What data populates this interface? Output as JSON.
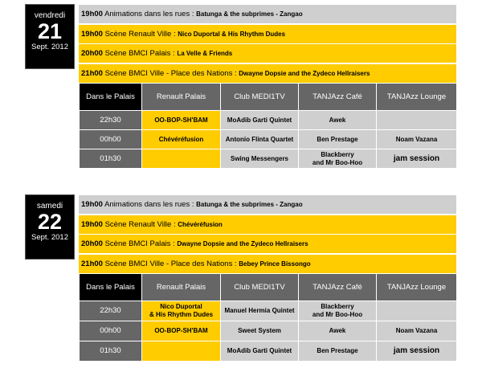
{
  "days": [
    {
      "weekday": "vendredi",
      "day": "21",
      "month": "Sept. 2012",
      "events": [
        {
          "time": "19h00",
          "venue": "Animations dans les rues :",
          "act": "Batunga & the subprimes - Zangao",
          "color": "gray"
        },
        {
          "time": "19h00",
          "venue": "Scène Renault Ville :",
          "act": "Nico Duportal & His Rhythm Dudes",
          "color": "yellow"
        },
        {
          "time": "20h00",
          "venue": "Scène BMCI Palais :",
          "act": "La Velle & Friends",
          "color": "yellow"
        },
        {
          "time": "21h00",
          "venue": "Scène BMCI Ville - Place des Nations :",
          "act": "Dwayne Dopsie and the Zydeco Hellraisers",
          "color": "yellow"
        }
      ],
      "table": {
        "headers": [
          "Dans le Palais",
          "Renault Palais",
          "Club MEDI1TV",
          "TANJAzz Café",
          "TANJAzz Lounge"
        ],
        "rows": [
          [
            "22h30",
            "OO-BOP-SH'BAM",
            "MoAdib Garti Quintet",
            "Awek",
            ""
          ],
          [
            "00h00",
            "Chévéréfusion",
            "Antonio Flinta Quartet",
            "Ben Prestage",
            "Noam Vazana"
          ],
          [
            "01h30",
            "",
            "Swing Messengers",
            "Blackberry\nand Mr Boo-Hoo",
            "jam session"
          ]
        ]
      }
    },
    {
      "weekday": "samedi",
      "day": "22",
      "month": "Sept. 2012",
      "events": [
        {
          "time": "19h00",
          "venue": "Animations dans les rues :",
          "act": "Batunga & the subprimes - Zangao",
          "color": "gray"
        },
        {
          "time": "19h00",
          "venue": "Scène Renault Ville :",
          "act": "Chévéréfusion",
          "color": "yellow"
        },
        {
          "time": "20h00",
          "venue": "Scène BMCI Palais :",
          "act": "Dwayne Dopsie and the Zydeco Hellraisers",
          "color": "yellow"
        },
        {
          "time": "21h00",
          "venue": "Scène BMCI Ville - Place des Nations :",
          "act": "Bebey Prince Bissongo",
          "color": "yellow"
        }
      ],
      "table": {
        "headers": [
          "Dans le Palais",
          "Renault Palais",
          "Club MEDI1TV",
          "TANJAzz Café",
          "TANJAzz Lounge"
        ],
        "rows": [
          [
            "22h30",
            "Nico Duportal\n& His Rhythm Dudes",
            "Manuel Hermia Quintet",
            "Blackberry\nand Mr Boo-Hoo",
            ""
          ],
          [
            "00h00",
            "OO-BOP-SH'BAM",
            "Sweet System",
            "Awek",
            "Noam Vazana"
          ],
          [
            "01h30",
            "",
            "MoAdib Garti Quintet",
            "Ben Prestage",
            "jam session"
          ]
        ]
      }
    }
  ]
}
